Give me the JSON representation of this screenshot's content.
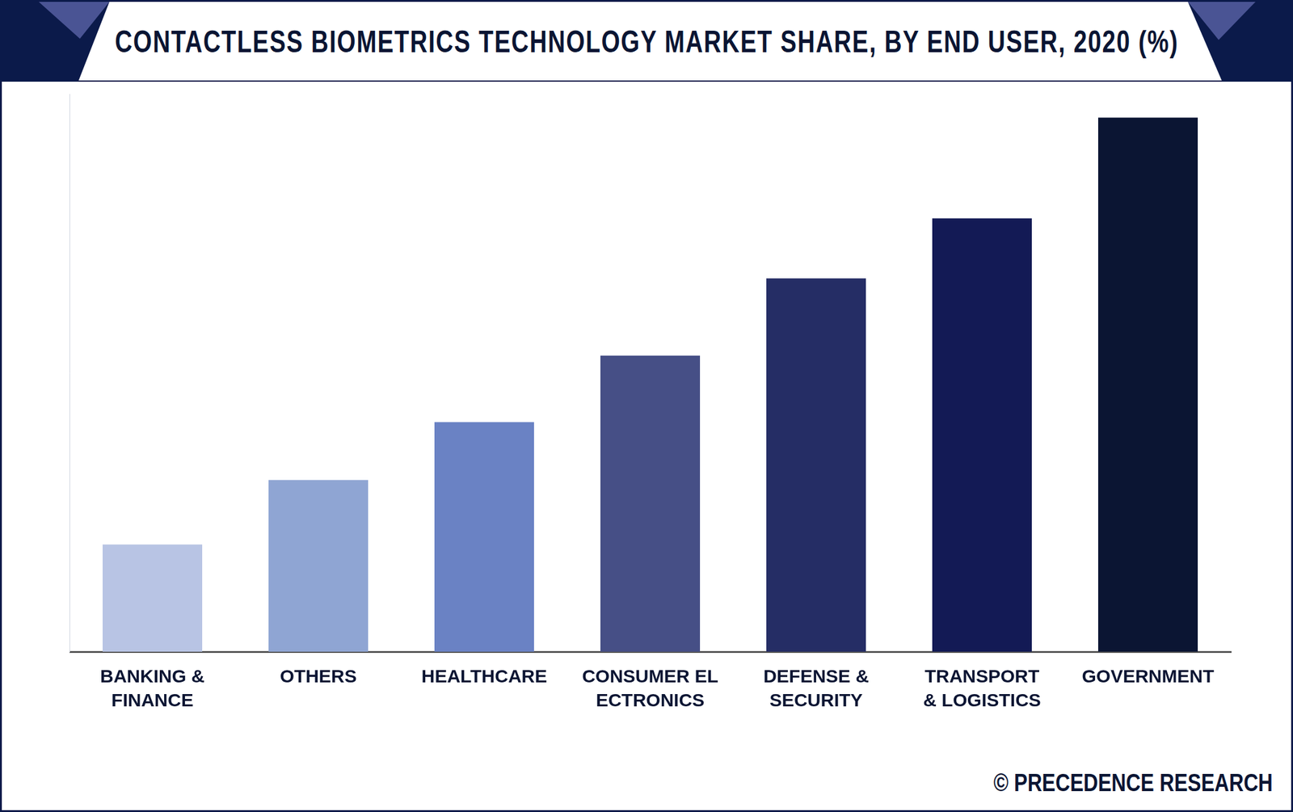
{
  "chart_data": {
    "type": "bar",
    "title": "CONTACTLESS BIOMETRICS TECHNOLOGY MARKET SHARE, BY END USER, 2020 (%)",
    "source": "© PRECEDENCE RESEARCH",
    "categories": [
      "BANKING &\nFINANCE",
      "OTHERS",
      "HEALTHCARE",
      "CONSUMER EL\nECTRONICS",
      "DEFENSE &\nSECURITY",
      "TRANSPORT\n& LOGISTICS",
      "GOVERNMENT"
    ],
    "values": [
      5.0,
      8.0,
      10.7,
      13.8,
      17.4,
      20.2,
      24.9
    ],
    "colors": [
      "#b8c4e4",
      "#8fa5d3",
      "#6a82c4",
      "#464f86",
      "#252d65",
      "#131a55",
      "#0b1533"
    ],
    "ylim": [
      0,
      26
    ],
    "grid": false,
    "tick_labels": "x"
  }
}
